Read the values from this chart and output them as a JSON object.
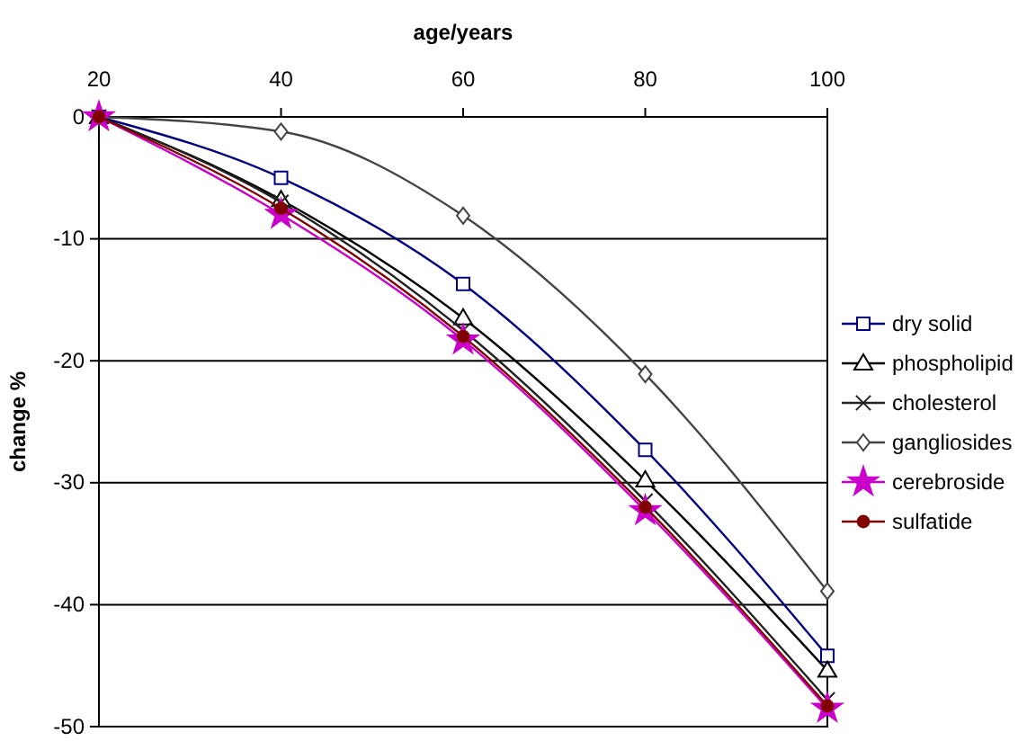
{
  "chart_data": {
    "type": "line",
    "xlabel": "age/years",
    "ylabel": "change %",
    "x": [
      20,
      40,
      60,
      80,
      100
    ],
    "xlim": [
      20,
      100
    ],
    "xticks": [
      20,
      40,
      60,
      80,
      100
    ],
    "ylim": [
      -50,
      0
    ],
    "yticks": [
      -50,
      -40,
      -30,
      -20,
      -10,
      0
    ],
    "grid": "y",
    "legend": "right",
    "line_style": "solid",
    "series": [
      {
        "name": "dry solid",
        "color": "#000080",
        "marker": "square",
        "values": [
          0,
          -5,
          -13.7,
          -27.3,
          -44.2
        ]
      },
      {
        "name": "phospholipid",
        "color": "#000000",
        "marker": "triangle",
        "values": [
          0,
          -6.8,
          -16.5,
          -29.8,
          -45.4
        ]
      },
      {
        "name": "cholesterol",
        "color": "#222222",
        "marker": "cross",
        "values": [
          0,
          -7,
          -17.5,
          -31.5,
          -47.8
        ]
      },
      {
        "name": "gangliosides",
        "color": "#444444",
        "marker": "diamond",
        "values": [
          0,
          -1.2,
          -8.1,
          -21.1,
          -38.9
        ]
      },
      {
        "name": "cerebroside",
        "color": "#cc00cc",
        "marker": "star",
        "values": [
          0,
          -8,
          -18.3,
          -32.3,
          -48.5
        ]
      },
      {
        "name": "sulfatide",
        "color": "#800000",
        "marker": "circle",
        "values": [
          0,
          -7.5,
          -18,
          -32,
          -48.3
        ]
      }
    ]
  }
}
